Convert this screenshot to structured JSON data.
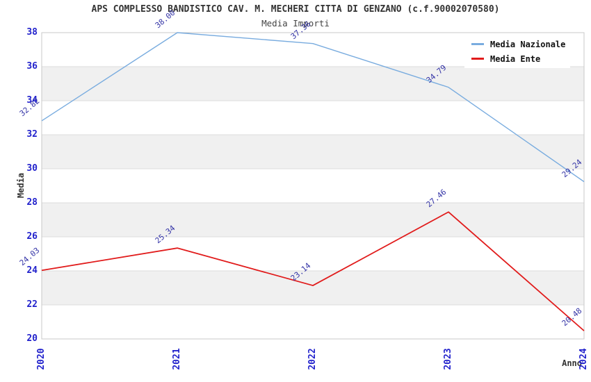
{
  "header": {
    "title": "APS COMPLESSO BANDISTICO CAV. M. MECHERI CITTA DI GENZANO (c.f.90002070580)",
    "subtitle": "Media Importi"
  },
  "axes": {
    "y_title": "Media",
    "x_title": "Anno"
  },
  "legend": {
    "items": [
      {
        "label": "Media Nazionale",
        "color": "#79ACDF"
      },
      {
        "label": "Media Ente",
        "color": "#E11B1B"
      }
    ]
  },
  "colors": {
    "tick_label": "#2222CC",
    "data_label": "#3333A6",
    "band_gray": "#F0F0F0",
    "gridline": "#DCDCDC",
    "plot_border": "#C8C8C8",
    "series_blue": "#79ACDF",
    "series_red": "#E11B1B",
    "text_dark": "#333333"
  },
  "chart_data": {
    "type": "line",
    "title": "APS COMPLESSO BANDISTICO CAV. M. MECHERI CITTA DI GENZANO (c.f.90002070580)",
    "subtitle": "Media Importi",
    "xlabel": "Anno",
    "ylabel": "Media",
    "categories": [
      "2020",
      "2021",
      "2022",
      "2023",
      "2024"
    ],
    "series": [
      {
        "name": "Media Nazionale",
        "color": "#79ACDF",
        "width": 1.4,
        "values": [
          32.82,
          38.0,
          37.36,
          34.79,
          29.24
        ]
      },
      {
        "name": "Media Ente",
        "color": "#E11B1B",
        "width": 1.8,
        "values": [
          24.03,
          25.34,
          23.14,
          27.46,
          20.48
        ]
      }
    ],
    "ylim": [
      20,
      38
    ],
    "ytick_step": 2,
    "yticks": [
      20,
      22,
      24,
      26,
      28,
      30,
      32,
      34,
      36,
      38
    ],
    "grid": "horizontal",
    "banded_background": true,
    "data_labels_decimals": 2,
    "legend_position": "top-right"
  }
}
